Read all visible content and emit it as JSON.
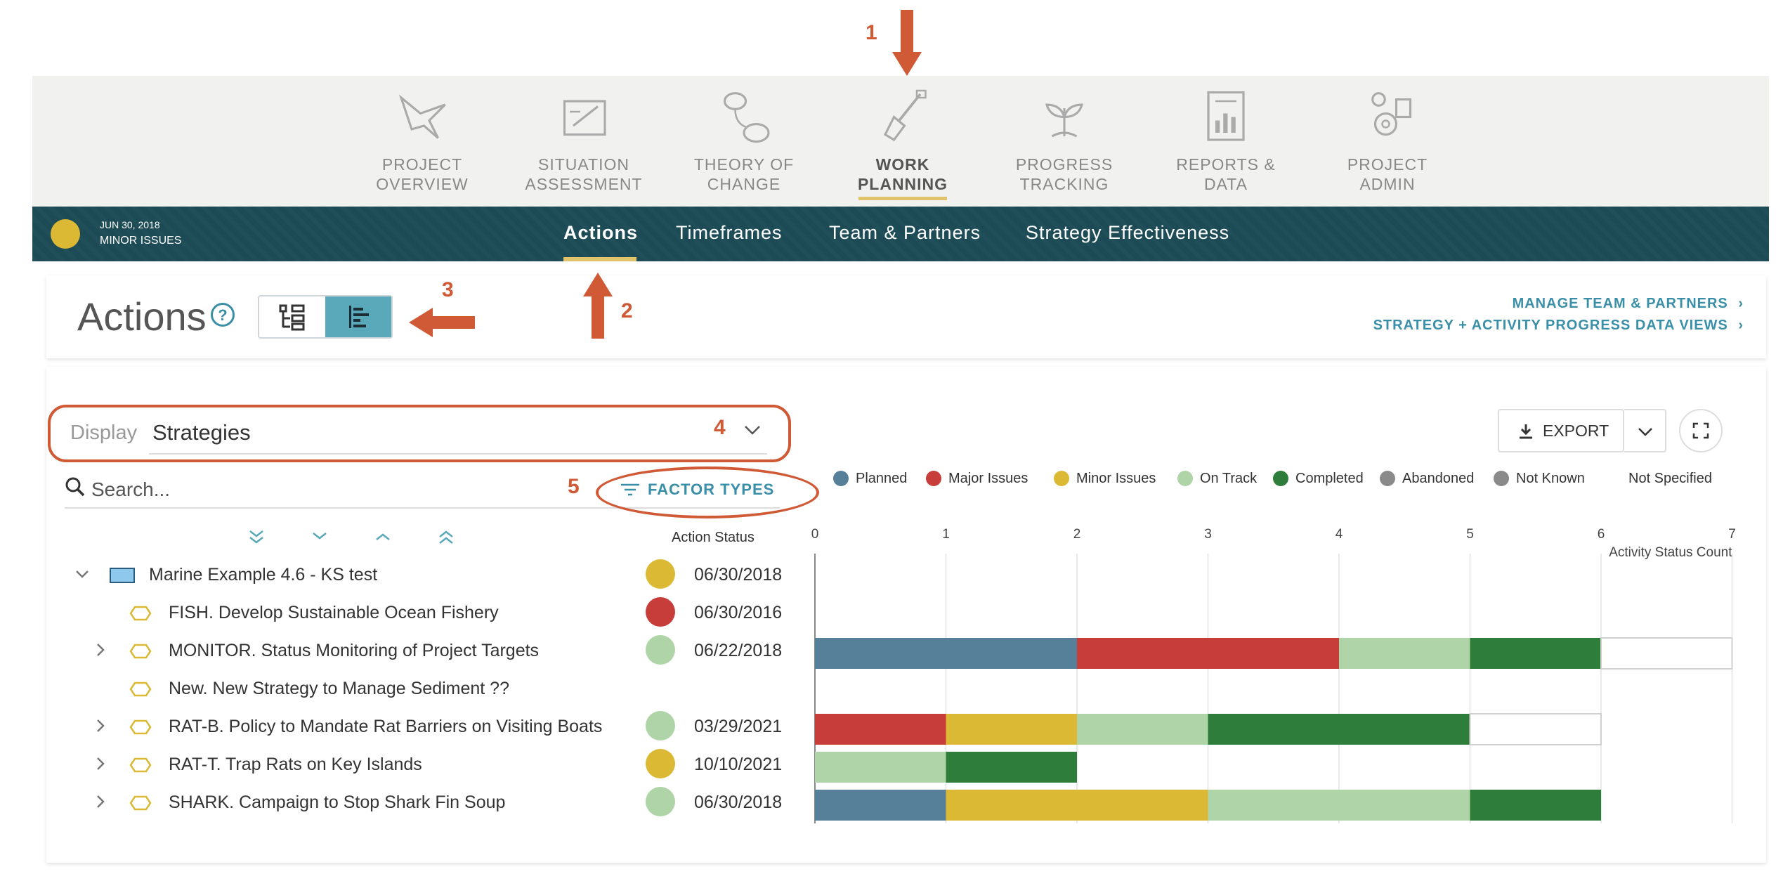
{
  "modules": [
    {
      "label_1": "PROJECT",
      "label_2": "OVERVIEW",
      "icon": "bird-icon",
      "active": false
    },
    {
      "label_1": "SITUATION",
      "label_2": "ASSESSMENT",
      "icon": "drawing-board-icon",
      "active": false
    },
    {
      "label_1": "THEORY OF",
      "label_2": "CHANGE",
      "icon": "flow-bubbles-icon",
      "active": false
    },
    {
      "label_1": "WORK",
      "label_2": "PLANNING",
      "icon": "shovel-icon",
      "active": true
    },
    {
      "label_1": "PROGRESS",
      "label_2": "TRACKING",
      "icon": "sprout-icon",
      "active": false
    },
    {
      "label_1": "REPORTS &",
      "label_2": "DATA",
      "icon": "report-chart-icon",
      "active": false
    },
    {
      "label_1": "PROJECT",
      "label_2": "ADMIN",
      "icon": "admin-gear-icon",
      "active": false
    }
  ],
  "project_status": {
    "date": "JUN 30, 2018",
    "text": "MINOR ISSUES",
    "color": "#dcb935"
  },
  "subtabs": [
    "Actions",
    "Timeframes",
    "Team & Partners",
    "Strategy Effectiveness"
  ],
  "page": {
    "title": "Actions",
    "help": "?",
    "link_manage": "MANAGE TEAM & PARTNERS",
    "link_progress": "STRATEGY + ACTIVITY PROGRESS DATA VIEWS"
  },
  "display": {
    "label": "Display",
    "value": "Strategies"
  },
  "search": {
    "placeholder": "Search..."
  },
  "factor_types": "FACTOR TYPES",
  "action_status_header": "Action Status",
  "export": "EXPORT",
  "annotations": [
    "1",
    "2",
    "3",
    "4",
    "5"
  ],
  "colors": {
    "planned": "#567f99",
    "major": "#c73d3a",
    "minor": "#dcb935",
    "on_track": "#aed4a7",
    "completed": "#2e7d3a",
    "abandoned": "#8a8a8a",
    "not_known": "#8a8a8a",
    "nav": "#1c4b55",
    "accent": "#3a8fa8",
    "annotation": "#d05a36"
  },
  "rows": [
    {
      "label": "Marine Example 4.6 - KS test",
      "status": "minor",
      "date": "06/30/2018",
      "level": 0,
      "expander": "down",
      "icon": "project-icon"
    },
    {
      "label": "FISH. Develop Sustainable Ocean Fishery",
      "status": "major",
      "date": "06/30/2016",
      "level": 1,
      "expander": "none",
      "icon": "strategy-hexagon-icon"
    },
    {
      "label": "MONITOR. Status Monitoring of Project Targets",
      "status": "on_track",
      "date": "06/22/2018",
      "level": 1,
      "expander": "right",
      "icon": "strategy-hexagon-icon"
    },
    {
      "label": "New. New Strategy to Manage Sediment ??",
      "status": "",
      "date": "",
      "level": 1,
      "expander": "none",
      "icon": "strategy-hexagon-icon"
    },
    {
      "label": "RAT-B. Policy to Mandate Rat Barriers on Visiting Boats",
      "status": "on_track",
      "date": "03/29/2021",
      "level": 1,
      "expander": "right",
      "icon": "strategy-hexagon-icon"
    },
    {
      "label": "RAT-T. Trap Rats on Key Islands",
      "status": "minor",
      "date": "10/10/2021",
      "level": 1,
      "expander": "right",
      "icon": "strategy-hexagon-icon"
    },
    {
      "label": "SHARK. Campaign to Stop Shark Fin Soup",
      "status": "on_track",
      "date": "06/30/2018",
      "level": 1,
      "expander": "right",
      "icon": "strategy-hexagon-icon"
    }
  ],
  "chart_data": {
    "type": "bar",
    "orientation": "horizontal",
    "stacked": true,
    "xlabel": "Activity Status Count",
    "xlim": [
      0,
      7
    ],
    "xticks": [
      0,
      1,
      2,
      3,
      4,
      5,
      6,
      7
    ],
    "grid": true,
    "legend_position": "top",
    "categories": [
      "Marine Example 4.6 - KS test",
      "FISH. Develop Sustainable Ocean Fishery",
      "MONITOR. Status Monitoring of Project Targets",
      "New. New Strategy to Manage Sediment ??",
      "RAT-B. Policy to Mandate Rat Barriers on Visiting Boats",
      "RAT-T. Trap Rats on Key Islands",
      "SHARK. Campaign to Stop Shark Fin Soup"
    ],
    "series": [
      {
        "name": "Planned",
        "key": "planned",
        "values": [
          0,
          0,
          2,
          0,
          0,
          0,
          1
        ]
      },
      {
        "name": "Major Issues",
        "key": "major",
        "values": [
          0,
          0,
          2,
          0,
          1,
          0,
          0
        ]
      },
      {
        "name": "Minor Issues",
        "key": "minor",
        "values": [
          0,
          0,
          0,
          0,
          1,
          0,
          2
        ]
      },
      {
        "name": "On Track",
        "key": "on_track",
        "values": [
          0,
          0,
          1,
          0,
          1,
          1,
          2
        ]
      },
      {
        "name": "Completed",
        "key": "completed",
        "values": [
          0,
          0,
          1,
          0,
          2,
          1,
          1
        ]
      },
      {
        "name": "Abandoned",
        "key": "abandoned",
        "values": [
          0,
          0,
          0,
          0,
          0,
          0,
          0
        ]
      },
      {
        "name": "Not Known",
        "key": "not_known",
        "values": [
          0,
          0,
          0,
          0,
          0,
          0,
          0
        ]
      },
      {
        "name": "Not Specified",
        "key": "not_specified",
        "values": [
          0,
          0,
          1,
          0,
          1,
          0,
          0
        ]
      }
    ]
  }
}
